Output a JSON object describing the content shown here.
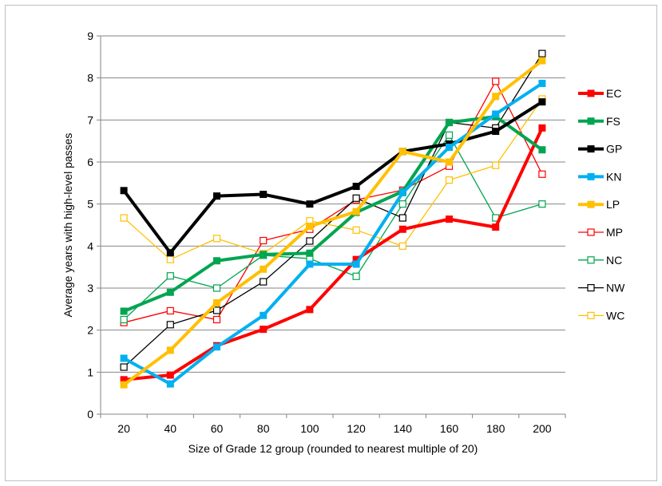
{
  "chart_data": {
    "type": "line",
    "title": "",
    "xlabel": "Size of Grade 12 group (rounded to nearest multiple of 20)",
    "ylabel": "Average years with high-level passes",
    "x": [
      20,
      40,
      60,
      80,
      100,
      120,
      140,
      160,
      180,
      200
    ],
    "x_tick_labels": [
      "20",
      "40",
      "60",
      "80",
      "100",
      "120",
      "140",
      "160",
      "180",
      "200"
    ],
    "ylim": [
      0,
      9
    ],
    "y_ticks": [
      0,
      1,
      2,
      3,
      4,
      5,
      6,
      7,
      8,
      9
    ],
    "grid": "horizontal",
    "legend": "right",
    "series": [
      {
        "name": "EC",
        "color": "#ff0000",
        "style": "bold",
        "values": [
          0.82,
          0.93,
          1.63,
          2.02,
          2.49,
          3.68,
          4.4,
          4.64,
          4.45,
          6.81
        ]
      },
      {
        "name": "FS",
        "color": "#00a550",
        "style": "bold",
        "values": [
          2.45,
          2.9,
          3.65,
          3.8,
          3.83,
          4.8,
          5.3,
          6.94,
          7.08,
          6.29
        ]
      },
      {
        "name": "GP",
        "color": "#000000",
        "style": "bold",
        "values": [
          5.32,
          3.84,
          5.19,
          5.23,
          5.0,
          5.42,
          6.25,
          6.43,
          6.73,
          7.43
        ]
      },
      {
        "name": "KN",
        "color": "#00b0f0",
        "style": "bold",
        "values": [
          1.33,
          0.72,
          1.6,
          2.35,
          3.57,
          3.57,
          5.27,
          6.35,
          7.14,
          7.87
        ]
      },
      {
        "name": "LP",
        "color": "#ffc000",
        "style": "bold",
        "values": [
          0.7,
          1.52,
          2.65,
          3.45,
          4.47,
          4.82,
          6.25,
          6.0,
          7.56,
          8.41
        ]
      },
      {
        "name": "MP",
        "color": "#ff0000",
        "style": "thin",
        "values": [
          2.18,
          2.46,
          2.25,
          4.13,
          4.4,
          5.1,
          5.33,
          5.9,
          7.92,
          5.71
        ]
      },
      {
        "name": "NC",
        "color": "#00a550",
        "style": "thin",
        "values": [
          2.25,
          3.29,
          3.0,
          3.78,
          3.7,
          3.28,
          5.0,
          6.64,
          4.67,
          5.0
        ]
      },
      {
        "name": "NW",
        "color": "#000000",
        "style": "thin",
        "values": [
          1.12,
          2.13,
          2.47,
          3.15,
          4.12,
          5.14,
          4.67,
          6.94,
          6.81,
          8.58
        ]
      },
      {
        "name": "WC",
        "color": "#ffc000",
        "style": "thin",
        "values": [
          4.67,
          3.68,
          4.18,
          3.82,
          4.6,
          4.38,
          4.0,
          5.57,
          5.92,
          7.5
        ]
      }
    ]
  }
}
